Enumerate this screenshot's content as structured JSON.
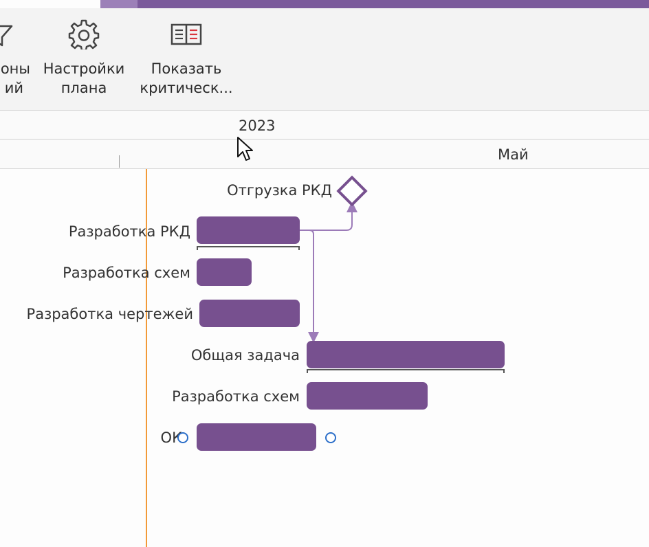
{
  "ribbon": {
    "buttons": [
      {
        "id": "milestones",
        "label_line1": "оны",
        "label_line2": "ий",
        "icon": "funnel-icon"
      },
      {
        "id": "plan-settings",
        "label_line1": "Настройки",
        "label_line2": "плана",
        "icon": "gear-icon"
      },
      {
        "id": "critical-path",
        "label_line1": "Показать",
        "label_line2": "критическ...",
        "icon": "book-icon"
      }
    ]
  },
  "timescale": {
    "year": "2023",
    "month": "Май"
  },
  "tasks": [
    {
      "label": "Отгрузка РКД",
      "type": "milestone"
    },
    {
      "label": "Разработка РКД",
      "type": "summary"
    },
    {
      "label": "Разработка схем",
      "type": "task"
    },
    {
      "label": "Разработка чертежей",
      "type": "task"
    },
    {
      "label": "Общая задача",
      "type": "summary"
    },
    {
      "label": "Разработка схем",
      "type": "task"
    },
    {
      "label": "ОК",
      "type": "task"
    }
  ],
  "colors": {
    "accent": "#77508f",
    "today_line": "#f29a38",
    "link": "#9c7bb8",
    "handle": "#2c6fc9"
  }
}
